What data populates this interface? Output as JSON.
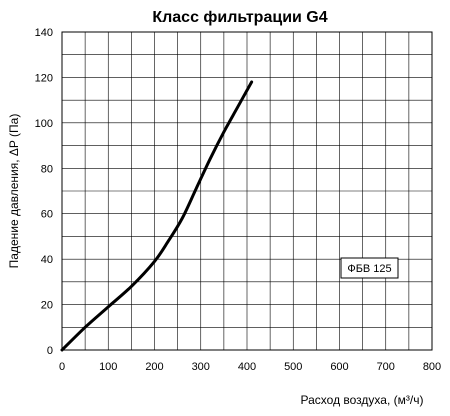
{
  "chart_data": {
    "type": "line",
    "title": "Класс фильтрации G4",
    "xlabel": "Расход воздуха, (м³/ч)",
    "ylabel": "Падение давления, ΔP (Па)",
    "xlim": [
      0,
      800
    ],
    "ylim": [
      0,
      140
    ],
    "xticks": [
      "0",
      "100",
      "200",
      "300",
      "400",
      "500",
      "600",
      "700",
      "800"
    ],
    "yticks": [
      "0",
      "20",
      "40",
      "60",
      "80",
      "100",
      "120",
      "140"
    ],
    "grid": true,
    "legend_position": "right",
    "series": [
      {
        "name": "ФБВ 125",
        "color": "#000000",
        "x": [
          0,
          50,
          100,
          150,
          200,
          230,
          260,
          290,
          320,
          350,
          380,
          410
        ],
        "y": [
          0,
          10,
          19,
          28,
          39,
          48,
          58,
          71,
          84,
          96,
          107,
          118
        ]
      }
    ]
  }
}
